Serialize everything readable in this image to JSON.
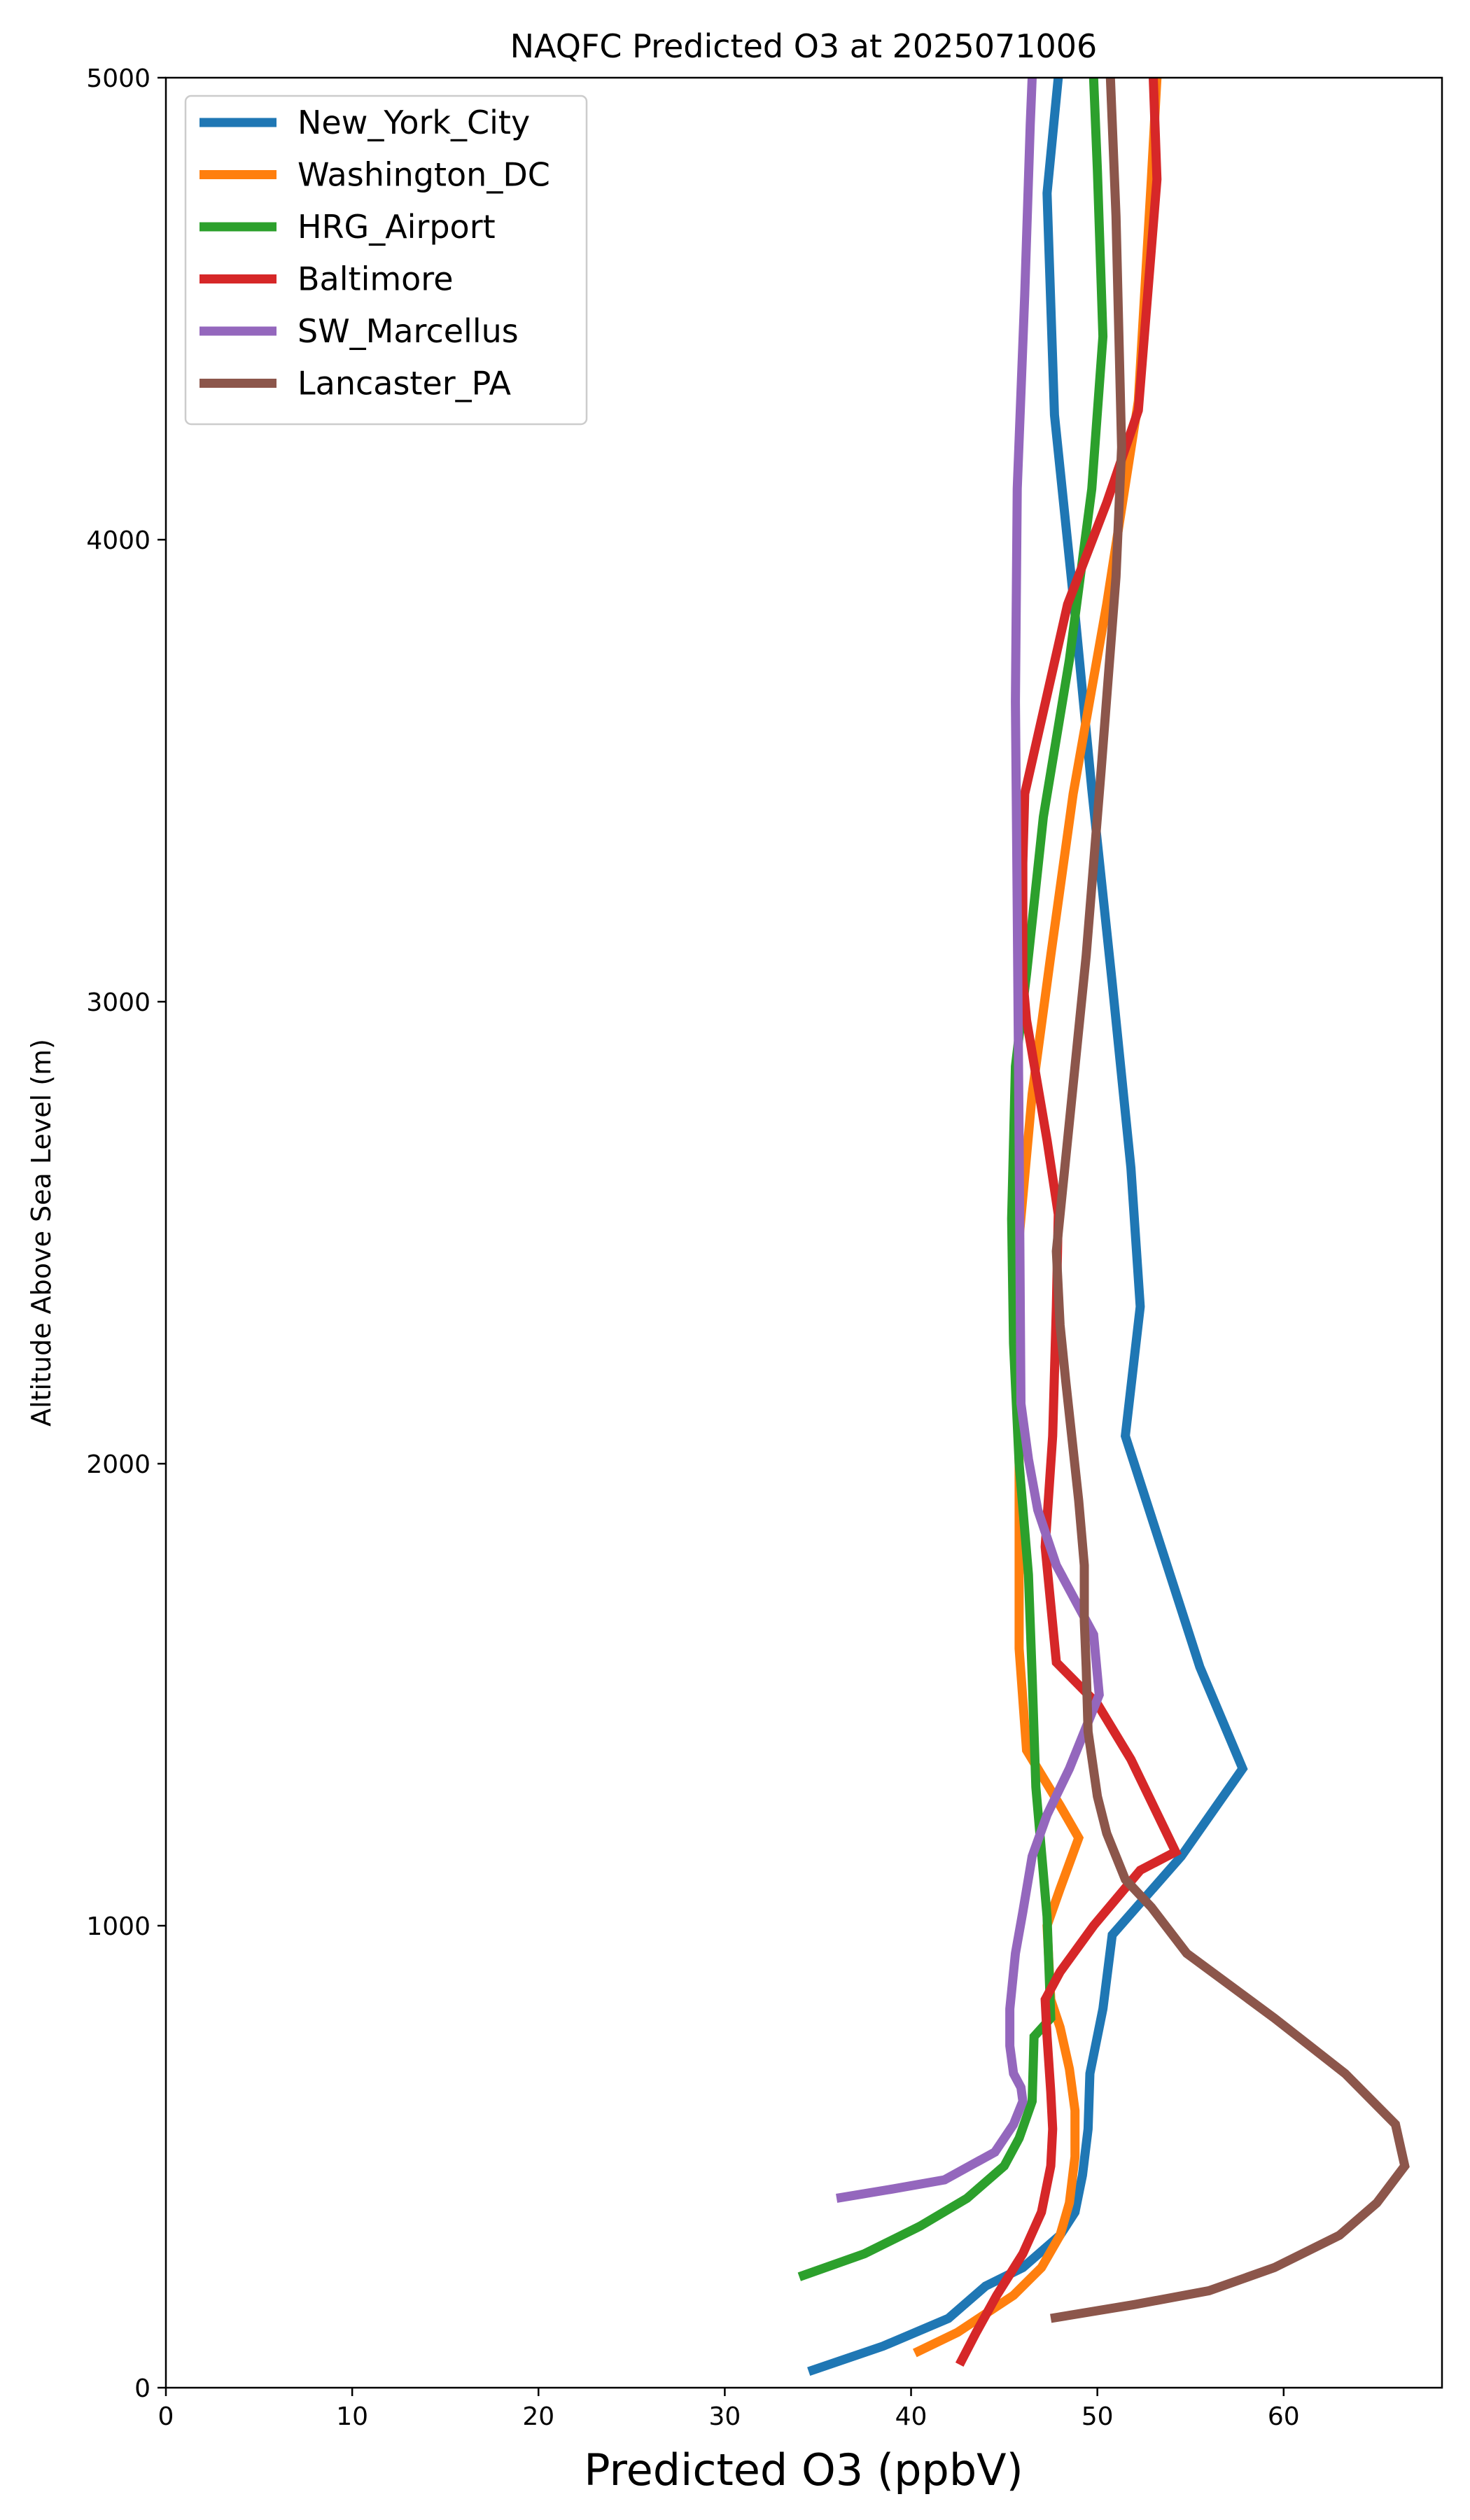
{
  "chart_data": {
    "type": "line",
    "title": "NAQFC Predicted O3 at 2025071006",
    "xlabel": "Predicted O3 (ppbV)",
    "ylabel": "Altitude Above Sea Level (m)",
    "xlim": [
      0,
      68.5
    ],
    "ylim": [
      0,
      5000
    ],
    "xticks": [
      0,
      10,
      20,
      30,
      40,
      50,
      60
    ],
    "yticks": [
      0,
      1000,
      2000,
      3000,
      4000,
      5000
    ],
    "grid": false,
    "legend_position": "upper-left",
    "series": [
      {
        "name": "New_York_City",
        "color": "#1f77b4",
        "points": [
          [
            34.5,
            35
          ],
          [
            38.5,
            90
          ],
          [
            42,
            150
          ],
          [
            44,
            220
          ],
          [
            46,
            260
          ],
          [
            48,
            330
          ],
          [
            48.8,
            380
          ],
          [
            49.2,
            460
          ],
          [
            49.5,
            560
          ],
          [
            49.6,
            680
          ],
          [
            50.3,
            820
          ],
          [
            50.8,
            980
          ],
          [
            54.5,
            1150
          ],
          [
            57.8,
            1340
          ],
          [
            55.5,
            1560
          ],
          [
            51.5,
            2060
          ],
          [
            52.3,
            2340
          ],
          [
            51.8,
            2640
          ],
          [
            50.8,
            3040
          ],
          [
            49.7,
            3460
          ],
          [
            48.8,
            3840
          ],
          [
            47.7,
            4270
          ],
          [
            47.3,
            4750
          ],
          [
            47.9,
            5000
          ]
        ]
      },
      {
        "name": "Washington_DC",
        "color": "#ff7f0e",
        "points": [
          [
            40.2,
            75
          ],
          [
            42.5,
            120
          ],
          [
            44,
            160
          ],
          [
            45.5,
            200
          ],
          [
            47,
            260
          ],
          [
            48,
            330
          ],
          [
            48.5,
            400
          ],
          [
            48.8,
            500
          ],
          [
            48.8,
            600
          ],
          [
            48.5,
            690
          ],
          [
            48,
            780
          ],
          [
            47.5,
            840
          ],
          [
            47.3,
            1000
          ],
          [
            48,
            1080
          ],
          [
            49,
            1190
          ],
          [
            48,
            1260
          ],
          [
            46.2,
            1380
          ],
          [
            45.8,
            1600
          ],
          [
            45.8,
            2000
          ],
          [
            45.6,
            2400
          ],
          [
            46.5,
            2800
          ],
          [
            47.5,
            3100
          ],
          [
            48.7,
            3450
          ],
          [
            50.5,
            3860
          ],
          [
            52.2,
            4300
          ],
          [
            52.9,
            4780
          ],
          [
            53.2,
            5000
          ]
        ]
      },
      {
        "name": "HRG_Airport",
        "color": "#2ca02c",
        "points": [
          [
            34,
            240
          ],
          [
            37.5,
            290
          ],
          [
            40.5,
            350
          ],
          [
            43,
            410
          ],
          [
            45,
            480
          ],
          [
            45.8,
            540
          ],
          [
            46.5,
            620
          ],
          [
            46.6,
            760
          ],
          [
            47.5,
            800
          ],
          [
            47.3,
            1020
          ],
          [
            46.7,
            1300
          ],
          [
            46.5,
            1540
          ],
          [
            46.3,
            1760
          ],
          [
            45.8,
            2000
          ],
          [
            45.5,
            2260
          ],
          [
            45.4,
            2530
          ],
          [
            45.6,
            2860
          ],
          [
            46.2,
            3060
          ],
          [
            47.1,
            3400
          ],
          [
            48.5,
            3740
          ],
          [
            49.7,
            4110
          ],
          [
            50.3,
            4440
          ],
          [
            50,
            4800
          ],
          [
            49.8,
            5000
          ]
        ]
      },
      {
        "name": "Baltimore",
        "color": "#d62728",
        "points": [
          [
            42.6,
            50
          ],
          [
            43.5,
            120
          ],
          [
            44.6,
            200
          ],
          [
            46,
            290
          ],
          [
            47,
            380
          ],
          [
            47.5,
            480
          ],
          [
            47.6,
            560
          ],
          [
            47.5,
            640
          ],
          [
            47.3,
            760
          ],
          [
            47.2,
            840
          ],
          [
            48,
            900
          ],
          [
            49.8,
            1000
          ],
          [
            52.3,
            1120
          ],
          [
            54.2,
            1160
          ],
          [
            51.8,
            1360
          ],
          [
            50,
            1480
          ],
          [
            47.8,
            1570
          ],
          [
            47.2,
            1820
          ],
          [
            47.6,
            2060
          ],
          [
            47.8,
            2340
          ],
          [
            47.9,
            2540
          ],
          [
            47.3,
            2700
          ],
          [
            46.2,
            2960
          ],
          [
            46,
            3050
          ],
          [
            46,
            3300
          ],
          [
            46.1,
            3450
          ],
          [
            48.4,
            3860
          ],
          [
            50.5,
            4080
          ],
          [
            52.2,
            4280
          ],
          [
            53.2,
            4780
          ],
          [
            53,
            5000
          ]
        ]
      },
      {
        "name": "SW_Marcellus",
        "color": "#9467bd",
        "points": [
          [
            36,
            410
          ],
          [
            39,
            430
          ],
          [
            41.8,
            450
          ],
          [
            44.5,
            510
          ],
          [
            45.5,
            570
          ],
          [
            46,
            620
          ],
          [
            45.9,
            650
          ],
          [
            45.5,
            680
          ],
          [
            45.3,
            740
          ],
          [
            45.3,
            820
          ],
          [
            45.6,
            940
          ],
          [
            46,
            1030
          ],
          [
            46.5,
            1150
          ],
          [
            47.3,
            1240
          ],
          [
            48.5,
            1340
          ],
          [
            49.3,
            1420
          ],
          [
            50.1,
            1500
          ],
          [
            49.8,
            1630
          ],
          [
            47.8,
            1780
          ],
          [
            46.8,
            1900
          ],
          [
            46.3,
            2010
          ],
          [
            45.9,
            2130
          ],
          [
            45.8,
            2700
          ],
          [
            45.7,
            3200
          ],
          [
            45.6,
            3650
          ],
          [
            45.7,
            4110
          ],
          [
            46.1,
            4530
          ],
          [
            46.4,
            4900
          ],
          [
            46.5,
            5000
          ]
        ]
      },
      {
        "name": "Lancaster_PA",
        "color": "#8c564b",
        "points": [
          [
            47.5,
            150
          ],
          [
            52,
            180
          ],
          [
            56,
            210
          ],
          [
            59.5,
            260
          ],
          [
            63,
            330
          ],
          [
            65,
            400
          ],
          [
            66.5,
            480
          ],
          [
            66.0,
            570
          ],
          [
            63.3,
            680
          ],
          [
            59.5,
            800
          ],
          [
            54.8,
            940
          ],
          [
            52.9,
            1040
          ],
          [
            51.5,
            1100
          ],
          [
            50.5,
            1200
          ],
          [
            50,
            1280
          ],
          [
            49.5,
            1420
          ],
          [
            49.4,
            1560
          ],
          [
            49.3,
            1660
          ],
          [
            49.3,
            1780
          ],
          [
            49,
            1920
          ],
          [
            48.3,
            2180
          ],
          [
            48,
            2300
          ],
          [
            47.8,
            2460
          ],
          [
            48.6,
            2780
          ],
          [
            49.4,
            3100
          ],
          [
            50.2,
            3500
          ],
          [
            51,
            3920
          ],
          [
            51.3,
            4200
          ],
          [
            51,
            4700
          ],
          [
            50.7,
            5000
          ]
        ]
      }
    ]
  }
}
